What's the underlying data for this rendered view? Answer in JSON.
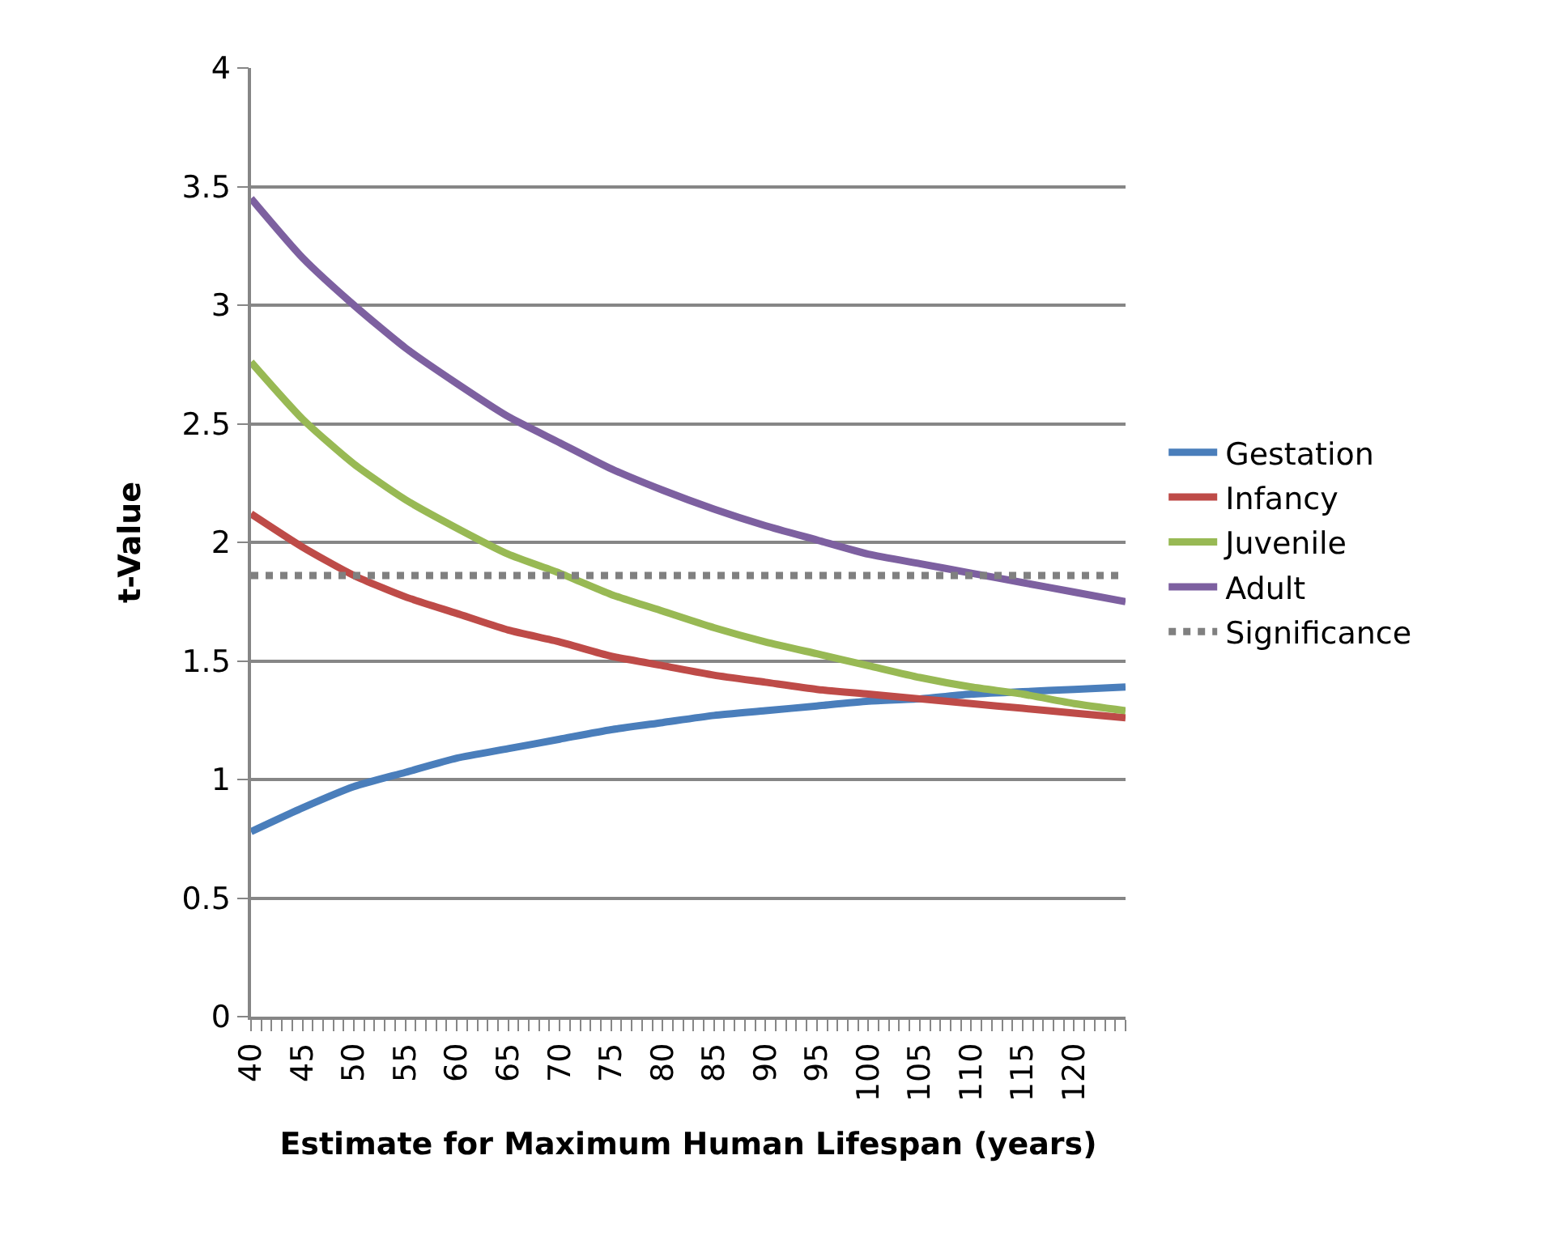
{
  "chart_data": {
    "type": "line",
    "xlabel": "Estimate for Maximum Human Lifespan (years)",
    "ylabel": "t-Value",
    "x": [
      40,
      45,
      50,
      55,
      60,
      65,
      70,
      75,
      80,
      85,
      90,
      95,
      100,
      105,
      110,
      115,
      120,
      125
    ],
    "series": [
      {
        "name": "Gestation",
        "color": "#4a7ebb",
        "values": [
          0.78,
          0.88,
          0.97,
          1.03,
          1.09,
          1.13,
          1.17,
          1.21,
          1.24,
          1.27,
          1.29,
          1.31,
          1.33,
          1.34,
          1.36,
          1.37,
          1.38,
          1.39
        ]
      },
      {
        "name": "Infancy",
        "color": "#be4b48",
        "values": [
          2.12,
          1.98,
          1.86,
          1.77,
          1.7,
          1.63,
          1.58,
          1.52,
          1.48,
          1.44,
          1.41,
          1.38,
          1.36,
          1.34,
          1.32,
          1.3,
          1.28,
          1.26
        ]
      },
      {
        "name": "Juvenile",
        "color": "#98b954",
        "values": [
          2.76,
          2.52,
          2.33,
          2.18,
          2.06,
          1.95,
          1.87,
          1.78,
          1.71,
          1.64,
          1.58,
          1.53,
          1.48,
          1.43,
          1.39,
          1.36,
          1.32,
          1.29
        ]
      },
      {
        "name": "Adult",
        "color": "#7d60a0",
        "values": [
          3.45,
          3.2,
          3.0,
          2.82,
          2.67,
          2.53,
          2.42,
          2.31,
          2.22,
          2.14,
          2.07,
          2.01,
          1.95,
          1.91,
          1.87,
          1.83,
          1.79,
          1.75
        ]
      },
      {
        "name": "Significance",
        "color": "#808080",
        "x": [
          40,
          125
        ],
        "values": [
          1.86,
          1.86
        ],
        "line_style": "dotted"
      }
    ],
    "xlim": [
      40,
      125
    ],
    "ylim": [
      0,
      4
    ],
    "yticks": [
      0,
      0.5,
      1,
      1.5,
      2,
      2.5,
      3,
      3.5,
      4
    ],
    "xticks": [
      40,
      {
        "value": 41,
        "label": null
      },
      {
        "value": 42,
        "label": null
      },
      {
        "value": 43,
        "label": null
      },
      {
        "value": 44,
        "label": null
      },
      45,
      {
        "value": 46,
        "label": null
      },
      {
        "value": 47,
        "label": null
      },
      {
        "value": 48,
        "label": null
      },
      {
        "value": 49,
        "label": null
      },
      50,
      {
        "value": 51,
        "label": null
      },
      {
        "value": 52,
        "label": null
      },
      {
        "value": 53,
        "label": null
      },
      {
        "value": 54,
        "label": null
      },
      55,
      {
        "value": 56,
        "label": null
      },
      {
        "value": 57,
        "label": null
      },
      {
        "value": 58,
        "label": null
      },
      {
        "value": 59,
        "label": null
      },
      60,
      {
        "value": 61,
        "label": null
      },
      {
        "value": 62,
        "label": null
      },
      {
        "value": 63,
        "label": null
      },
      {
        "value": 64,
        "label": null
      },
      65,
      {
        "value": 66,
        "label": null
      },
      {
        "value": 67,
        "label": null
      },
      {
        "value": 68,
        "label": null
      },
      {
        "value": 69,
        "label": null
      },
      70,
      {
        "value": 71,
        "label": null
      },
      {
        "value": 72,
        "label": null
      },
      {
        "value": 73,
        "label": null
      },
      {
        "value": 74,
        "label": null
      },
      75,
      {
        "value": 76,
        "label": null
      },
      {
        "value": 77,
        "label": null
      },
      {
        "value": 78,
        "label": null
      },
      {
        "value": 79,
        "label": null
      },
      80,
      {
        "value": 81,
        "label": null
      },
      {
        "value": 82,
        "label": null
      },
      {
        "value": 83,
        "label": null
      },
      {
        "value": 84,
        "label": null
      },
      85,
      {
        "value": 86,
        "label": null
      },
      {
        "value": 87,
        "label": null
      },
      {
        "value": 88,
        "label": null
      },
      {
        "value": 89,
        "label": null
      },
      90,
      {
        "value": 91,
        "label": null
      },
      {
        "value": 92,
        "label": null
      },
      {
        "value": 93,
        "label": null
      },
      {
        "value": 94,
        "label": null
      },
      95,
      {
        "value": 96,
        "label": null
      },
      {
        "value": 97,
        "label": null
      },
      {
        "value": 98,
        "label": null
      },
      {
        "value": 99,
        "label": null
      },
      100,
      {
        "value": 101,
        "label": null
      },
      {
        "value": 102,
        "label": null
      },
      {
        "value": 103,
        "label": null
      },
      {
        "value": 104,
        "label": null
      },
      105,
      {
        "value": 106,
        "label": null
      },
      {
        "value": 107,
        "label": null
      },
      {
        "value": 108,
        "label": null
      },
      {
        "value": 109,
        "label": null
      },
      110,
      {
        "value": 111,
        "label": null
      },
      {
        "value": 112,
        "label": null
      },
      {
        "value": 113,
        "label": null
      },
      {
        "value": 114,
        "label": null
      },
      115,
      {
        "value": 116,
        "label": null
      },
      {
        "value": 117,
        "label": null
      },
      {
        "value": 118,
        "label": null
      },
      {
        "value": 119,
        "label": null
      },
      120,
      {
        "value": 121,
        "label": null
      },
      {
        "value": 122,
        "label": null
      },
      {
        "value": 123,
        "label": null
      },
      {
        "value": 124,
        "label": null
      },
      {
        "value": 125,
        "label": null
      }
    ],
    "grid": "y",
    "legend": "right",
    "marker": "none",
    "line_style": "solid"
  }
}
